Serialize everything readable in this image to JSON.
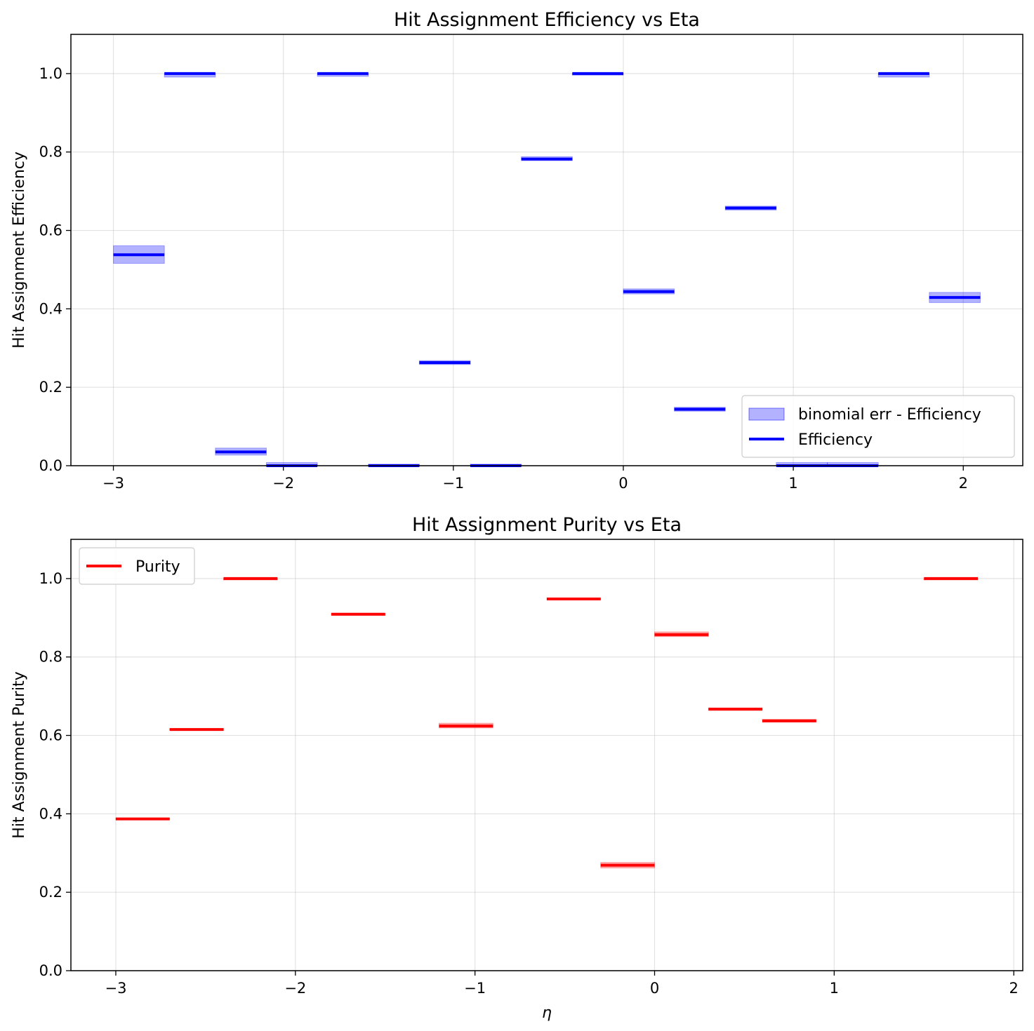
{
  "chart_data": [
    {
      "type": "step",
      "title": "Hit Assignment Efficiency vs Eta",
      "xlabel": "",
      "ylabel": "Hit Assignment Efficiency",
      "xlim": [
        -3.25,
        2.35
      ],
      "ylim": [
        0,
        1.1
      ],
      "xticks": [
        -3,
        -2,
        -1,
        0,
        1,
        2
      ],
      "xtick_labels": [
        "−3",
        "−2",
        "−1",
        "0",
        "1",
        "2"
      ],
      "yticks": [
        0,
        0.2,
        0.4,
        0.6,
        0.8,
        1.0
      ],
      "ytick_labels": [
        "0.0",
        "0.2",
        "0.4",
        "0.6",
        "0.8",
        "1.0"
      ],
      "grid": true,
      "legend_position": "lower-right",
      "line_color": "#0000ff",
      "band_color": "#0000ff",
      "legend": [
        {
          "kind": "band",
          "label": "binomial err - Efficiency"
        },
        {
          "kind": "line",
          "label": "Efficiency"
        }
      ],
      "bins": [
        {
          "x0": -3.0,
          "x1": -2.7,
          "y": 0.538,
          "lo": 0.516,
          "hi": 0.561
        },
        {
          "x0": -2.7,
          "x1": -2.4,
          "y": 1.0,
          "lo": 0.991,
          "hi": 1.0
        },
        {
          "x0": -2.4,
          "x1": -2.1,
          "y": 0.035,
          "lo": 0.027,
          "hi": 0.045
        },
        {
          "x0": -2.1,
          "x1": -1.8,
          "y": 0.0,
          "lo": 0.0,
          "hi": 0.008
        },
        {
          "x0": -1.8,
          "x1": -1.5,
          "y": 1.0,
          "lo": 0.993,
          "hi": 1.0
        },
        {
          "x0": -1.5,
          "x1": -1.2,
          "y": 0.0,
          "lo": 0.0,
          "hi": 0.004
        },
        {
          "x0": -1.2,
          "x1": -0.9,
          "y": 0.263,
          "lo": 0.258,
          "hi": 0.268
        },
        {
          "x0": -0.9,
          "x1": -0.6,
          "y": 0.0,
          "lo": 0.0,
          "hi": 0.004
        },
        {
          "x0": -0.6,
          "x1": -0.3,
          "y": 0.782,
          "lo": 0.778,
          "hi": 0.788
        },
        {
          "x0": -0.3,
          "x1": 0.0,
          "y": 1.0,
          "lo": 0.996,
          "hi": 1.0
        },
        {
          "x0": 0.0,
          "x1": 0.3,
          "y": 0.444,
          "lo": 0.438,
          "hi": 0.451
        },
        {
          "x0": 0.3,
          "x1": 0.6,
          "y": 0.144,
          "lo": 0.139,
          "hi": 0.149
        },
        {
          "x0": 0.6,
          "x1": 0.9,
          "y": 0.657,
          "lo": 0.652,
          "hi": 0.662
        },
        {
          "x0": 0.9,
          "x1": 1.2,
          "y": 0.0,
          "lo": 0.0,
          "hi": 0.008
        },
        {
          "x0": 1.2,
          "x1": 1.5,
          "y": 0.0,
          "lo": 0.0,
          "hi": 0.008
        },
        {
          "x0": 1.5,
          "x1": 1.8,
          "y": 1.0,
          "lo": 0.991,
          "hi": 1.0
        },
        {
          "x0": 1.8,
          "x1": 2.1,
          "y": 0.429,
          "lo": 0.416,
          "hi": 0.442
        }
      ]
    },
    {
      "type": "step",
      "title": "Hit Assignment Purity vs Eta",
      "xlabel": "η",
      "ylabel": "Hit Assignment Purity",
      "xlim": [
        -3.25,
        2.05
      ],
      "ylim": [
        0,
        1.1
      ],
      "xticks": [
        -3,
        -2,
        -1,
        0,
        1,
        2
      ],
      "xtick_labels": [
        "−3",
        "−2",
        "−1",
        "0",
        "1",
        "2"
      ],
      "yticks": [
        0,
        0.2,
        0.4,
        0.6,
        0.8,
        1.0
      ],
      "ytick_labels": [
        "0.0",
        "0.2",
        "0.4",
        "0.6",
        "0.8",
        "1.0"
      ],
      "grid": true,
      "legend_position": "upper-left",
      "line_color": "#ff0000",
      "band_color": "#ff0000",
      "legend": [
        {
          "kind": "line",
          "label": "Purity"
        }
      ],
      "bins": [
        {
          "x0": -3.0,
          "x1": -2.7,
          "y": 0.387,
          "lo": 0.385,
          "hi": 0.389
        },
        {
          "x0": -2.7,
          "x1": -2.4,
          "y": 0.615,
          "lo": 0.613,
          "hi": 0.617
        },
        {
          "x0": -2.4,
          "x1": -2.1,
          "y": 1.0,
          "lo": 0.998,
          "hi": 1.0
        },
        {
          "x0": -1.8,
          "x1": -1.5,
          "y": 0.909,
          "lo": 0.906,
          "hi": 0.911
        },
        {
          "x0": -1.2,
          "x1": -0.9,
          "y": 0.624,
          "lo": 0.619,
          "hi": 0.631
        },
        {
          "x0": -0.6,
          "x1": -0.3,
          "y": 0.948,
          "lo": 0.946,
          "hi": 0.95
        },
        {
          "x0": -0.3,
          "x1": 0.0,
          "y": 0.269,
          "lo": 0.262,
          "hi": 0.276
        },
        {
          "x0": 0.0,
          "x1": 0.3,
          "y": 0.857,
          "lo": 0.852,
          "hi": 0.864
        },
        {
          "x0": 0.3,
          "x1": 0.6,
          "y": 0.667,
          "lo": 0.664,
          "hi": 0.67
        },
        {
          "x0": 0.6,
          "x1": 0.9,
          "y": 0.637,
          "lo": 0.634,
          "hi": 0.641
        },
        {
          "x0": 1.5,
          "x1": 1.8,
          "y": 1.0,
          "lo": 0.998,
          "hi": 1.0
        }
      ]
    }
  ]
}
